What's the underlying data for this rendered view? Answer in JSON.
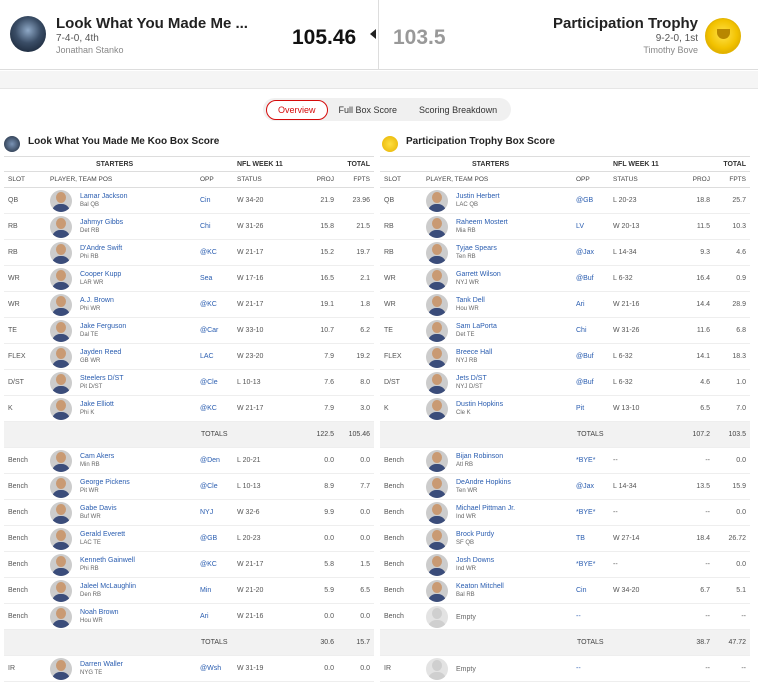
{
  "matchup": {
    "left": {
      "name": "Look What You Made Me ...",
      "record": "7-4-0, 4th",
      "owner": "Jonathan Stanko",
      "score": "105.46"
    },
    "right": {
      "name": "Participation Trophy",
      "record": "9-2-0, 1st",
      "owner": "Timothy Bove",
      "score": "103.5"
    }
  },
  "tabs": [
    "Overview",
    "Full Box Score",
    "Scoring Breakdown"
  ],
  "columns": {
    "starters": "STARTERS",
    "week": "NFL WEEK 11",
    "total": "TOTAL",
    "slot": "SLOT",
    "player": "PLAYER, TEAM POS",
    "opp": "OPP",
    "status": "STATUS",
    "proj": "PROJ",
    "fpts": "FPTS"
  },
  "left_box": {
    "title": "Look What You Made Me Koo Box Score",
    "starters": [
      {
        "slot": "QB",
        "name": "Lamar Jackson",
        "team_pos": "Bal QB",
        "opp": "Cin",
        "status": "W 34-20",
        "proj": "21.9",
        "fpts": "23.96"
      },
      {
        "slot": "RB",
        "name": "Jahmyr Gibbs",
        "team_pos": "Det RB",
        "opp": "Chi",
        "status": "W 31-26",
        "proj": "15.8",
        "fpts": "21.5"
      },
      {
        "slot": "RB",
        "name": "D'Andre Swift",
        "team_pos": "Phi RB",
        "opp": "@KC",
        "status": "W 21-17",
        "proj": "15.2",
        "fpts": "19.7"
      },
      {
        "slot": "WR",
        "name": "Cooper Kupp",
        "team_pos": "LAR WR",
        "opp": "Sea",
        "status": "W 17-16",
        "proj": "16.5",
        "fpts": "2.1"
      },
      {
        "slot": "WR",
        "name": "A.J. Brown",
        "team_pos": "Phi WR",
        "opp": "@KC",
        "status": "W 21-17",
        "proj": "19.1",
        "fpts": "1.8"
      },
      {
        "slot": "TE",
        "name": "Jake Ferguson",
        "team_pos": "Dal TE",
        "opp": "@Car",
        "status": "W 33-10",
        "proj": "10.7",
        "fpts": "6.2"
      },
      {
        "slot": "FLEX",
        "name": "Jayden Reed",
        "team_pos": "GB WR",
        "opp": "LAC",
        "status": "W 23-20",
        "proj": "7.9",
        "fpts": "19.2"
      },
      {
        "slot": "D/ST",
        "name": "Steelers D/ST",
        "team_pos": "Pit D/ST",
        "opp": "@Cle",
        "status": "L 10-13",
        "proj": "7.6",
        "fpts": "8.0"
      },
      {
        "slot": "K",
        "name": "Jake Elliott",
        "team_pos": "Phi K",
        "opp": "@KC",
        "status": "W 21-17",
        "proj": "7.9",
        "fpts": "3.0"
      }
    ],
    "starters_total": {
      "label": "TOTALS",
      "proj": "122.5",
      "fpts": "105.46"
    },
    "bench": [
      {
        "slot": "Bench",
        "name": "Cam Akers",
        "team_pos": "Min RB",
        "opp": "@Den",
        "status": "L 20-21",
        "proj": "0.0",
        "fpts": "0.0"
      },
      {
        "slot": "Bench",
        "name": "George Pickens",
        "team_pos": "Pit WR",
        "opp": "@Cle",
        "status": "L 10-13",
        "proj": "8.9",
        "fpts": "7.7"
      },
      {
        "slot": "Bench",
        "name": "Gabe Davis",
        "team_pos": "Buf WR",
        "opp": "NYJ",
        "status": "W 32-6",
        "proj": "9.9",
        "fpts": "0.0"
      },
      {
        "slot": "Bench",
        "name": "Gerald Everett",
        "team_pos": "LAC TE",
        "opp": "@GB",
        "status": "L 20-23",
        "proj": "0.0",
        "fpts": "0.0"
      },
      {
        "slot": "Bench",
        "name": "Kenneth Gainwell",
        "team_pos": "Phi RB",
        "opp": "@KC",
        "status": "W 21-17",
        "proj": "5.8",
        "fpts": "1.5"
      },
      {
        "slot": "Bench",
        "name": "Jaleel McLaughlin",
        "team_pos": "Den RB",
        "opp": "Min",
        "status": "W 21-20",
        "proj": "5.9",
        "fpts": "6.5"
      },
      {
        "slot": "Bench",
        "name": "Noah Brown",
        "team_pos": "Hou WR",
        "opp": "Ari",
        "status": "W 21-16",
        "proj": "0.0",
        "fpts": "0.0"
      }
    ],
    "bench_total": {
      "label": "TOTALS",
      "proj": "30.6",
      "fpts": "15.7"
    },
    "ir": [
      {
        "slot": "IR",
        "name": "Darren Waller",
        "team_pos": "NYG TE",
        "opp": "@Wsh",
        "status": "W 31-19",
        "proj": "0.0",
        "fpts": "0.0"
      }
    ]
  },
  "right_box": {
    "title": "Participation Trophy Box Score",
    "starters": [
      {
        "slot": "QB",
        "name": "Justin Herbert",
        "team_pos": "LAC QB",
        "opp": "@GB",
        "status": "L 20-23",
        "proj": "18.8",
        "fpts": "25.7"
      },
      {
        "slot": "RB",
        "name": "Raheem Mostert",
        "team_pos": "Mia RB",
        "opp": "LV",
        "status": "W 20-13",
        "proj": "11.5",
        "fpts": "10.3"
      },
      {
        "slot": "RB",
        "name": "Tyjae Spears",
        "team_pos": "Ten RB",
        "opp": "@Jax",
        "status": "L 14-34",
        "proj": "9.3",
        "fpts": "4.6"
      },
      {
        "slot": "WR",
        "name": "Garrett Wilson",
        "team_pos": "NYJ WR",
        "opp": "@Buf",
        "status": "L 6-32",
        "proj": "16.4",
        "fpts": "0.9"
      },
      {
        "slot": "WR",
        "name": "Tank Dell",
        "team_pos": "Hou WR",
        "opp": "Ari",
        "status": "W 21-16",
        "proj": "14.4",
        "fpts": "28.9"
      },
      {
        "slot": "TE",
        "name": "Sam LaPorta",
        "team_pos": "Det TE",
        "opp": "Chi",
        "status": "W 31-26",
        "proj": "11.6",
        "fpts": "6.8"
      },
      {
        "slot": "FLEX",
        "name": "Breece Hall",
        "team_pos": "NYJ RB",
        "opp": "@Buf",
        "status": "L 6-32",
        "proj": "14.1",
        "fpts": "18.3"
      },
      {
        "slot": "D/ST",
        "name": "Jets D/ST",
        "team_pos": "NYJ D/ST",
        "opp": "@Buf",
        "status": "L 6-32",
        "proj": "4.6",
        "fpts": "1.0"
      },
      {
        "slot": "K",
        "name": "Dustin Hopkins",
        "team_pos": "Cle K",
        "opp": "Pit",
        "status": "W 13-10",
        "proj": "6.5",
        "fpts": "7.0"
      }
    ],
    "starters_total": {
      "label": "TOTALS",
      "proj": "107.2",
      "fpts": "103.5"
    },
    "bench": [
      {
        "slot": "Bench",
        "name": "Bijan Robinson",
        "team_pos": "Atl RB",
        "opp": "*BYE*",
        "status": "--",
        "proj": "--",
        "fpts": "0.0"
      },
      {
        "slot": "Bench",
        "name": "DeAndre Hopkins",
        "team_pos": "Ten WR",
        "opp": "@Jax",
        "status": "L 14-34",
        "proj": "13.5",
        "fpts": "15.9"
      },
      {
        "slot": "Bench",
        "name": "Michael Pittman Jr.",
        "team_pos": "Ind WR",
        "opp": "*BYE*",
        "status": "--",
        "proj": "--",
        "fpts": "0.0"
      },
      {
        "slot": "Bench",
        "name": "Brock Purdy",
        "team_pos": "SF QB",
        "opp": "TB",
        "status": "W 27-14",
        "proj": "18.4",
        "fpts": "26.72"
      },
      {
        "slot": "Bench",
        "name": "Josh Downs",
        "team_pos": "Ind WR",
        "opp": "*BYE*",
        "status": "--",
        "proj": "--",
        "fpts": "0.0"
      },
      {
        "slot": "Bench",
        "name": "Keaton Mitchell",
        "team_pos": "Bal RB",
        "opp": "Cin",
        "status": "W 34-20",
        "proj": "6.7",
        "fpts": "5.1"
      },
      {
        "slot": "Bench",
        "name": "Empty",
        "team_pos": "",
        "opp": "--",
        "status": "",
        "proj": "--",
        "fpts": "--",
        "empty": true
      }
    ],
    "bench_total": {
      "label": "TOTALS",
      "proj": "38.7",
      "fpts": "47.72"
    },
    "ir": [
      {
        "slot": "IR",
        "name": "Empty",
        "team_pos": "",
        "opp": "--",
        "status": "",
        "proj": "--",
        "fpts": "--",
        "empty": true
      }
    ]
  }
}
